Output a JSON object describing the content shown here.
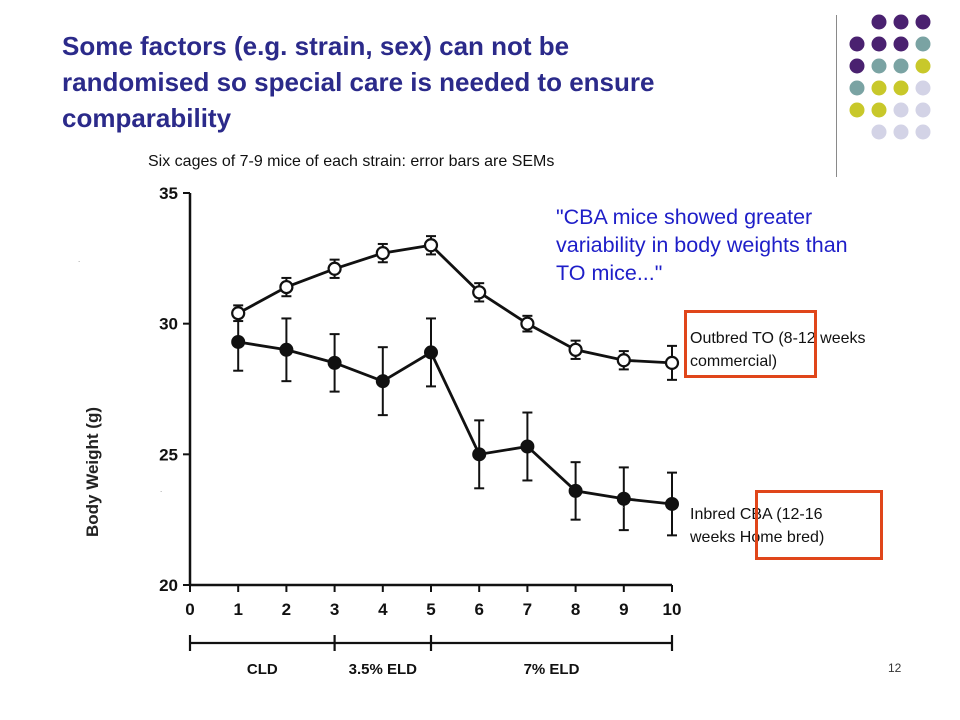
{
  "slide": {
    "title_lines": [
      "Some factors (e.g. strain, sex) can not be",
      "randomised so special care is needed to ensure",
      "comparability"
    ],
    "subtitle": "Six cages of 7-9 mice of each strain: error bars are SEMs",
    "quote_lines": [
      "\"CBA mice showed greater",
      "variability in body weights than",
      "TO mice...\""
    ],
    "annotation_to": [
      "Outbred TO (8-12 weeks",
      "commercial)"
    ],
    "annotation_cba": [
      "Inbred  CBA (12-16",
      "weeks Home bred)"
    ],
    "page_number": "12",
    "colors": {
      "title": "#2b2a8a",
      "quote": "#1e1ec8",
      "highlight_box": "#e0461a",
      "dot_purple": "#4a2170",
      "dot_teal": "#7aa3a3",
      "dot_yellow": "#c8c82a",
      "dot_lavender": "#d3d3e6"
    }
  },
  "chart_data": {
    "type": "line",
    "ylabel": "Body Weight (g)",
    "xlabel": "",
    "x": [
      1,
      2,
      3,
      4,
      5,
      6,
      7,
      8,
      9,
      10
    ],
    "xticks": [
      "0",
      "1",
      "2",
      "3",
      "4",
      "5",
      "6",
      "7",
      "8",
      "9",
      "10"
    ],
    "yticks": [
      "20",
      "25",
      "30",
      "35"
    ],
    "xlim": [
      0,
      10
    ],
    "ylim": [
      20,
      35
    ],
    "grid": false,
    "series": [
      {
        "name": "Outbred TO (8-12 weeks commercial)",
        "marker": "open-circle",
        "values": [
          30.4,
          31.4,
          32.1,
          32.7,
          33.0,
          31.2,
          30.0,
          29.0,
          28.6,
          28.5
        ],
        "sem": [
          0.3,
          0.35,
          0.35,
          0.35,
          0.35,
          0.35,
          0.3,
          0.35,
          0.35,
          0.65
        ]
      },
      {
        "name": "Inbred CBA (12-16 weeks Home bred)",
        "marker": "filled-circle",
        "values": [
          29.3,
          29.0,
          28.5,
          27.8,
          28.9,
          25.0,
          25.3,
          23.6,
          23.3,
          23.1
        ],
        "sem": [
          1.1,
          1.2,
          1.1,
          1.3,
          1.3,
          1.3,
          1.3,
          1.1,
          1.2,
          1.2
        ]
      }
    ],
    "phases": [
      {
        "label": "CLD",
        "from": 0,
        "to": 3
      },
      {
        "label": "3.5% ELD",
        "from": 3,
        "to": 5
      },
      {
        "label": "7% ELD",
        "from": 5,
        "to": 10
      }
    ]
  }
}
